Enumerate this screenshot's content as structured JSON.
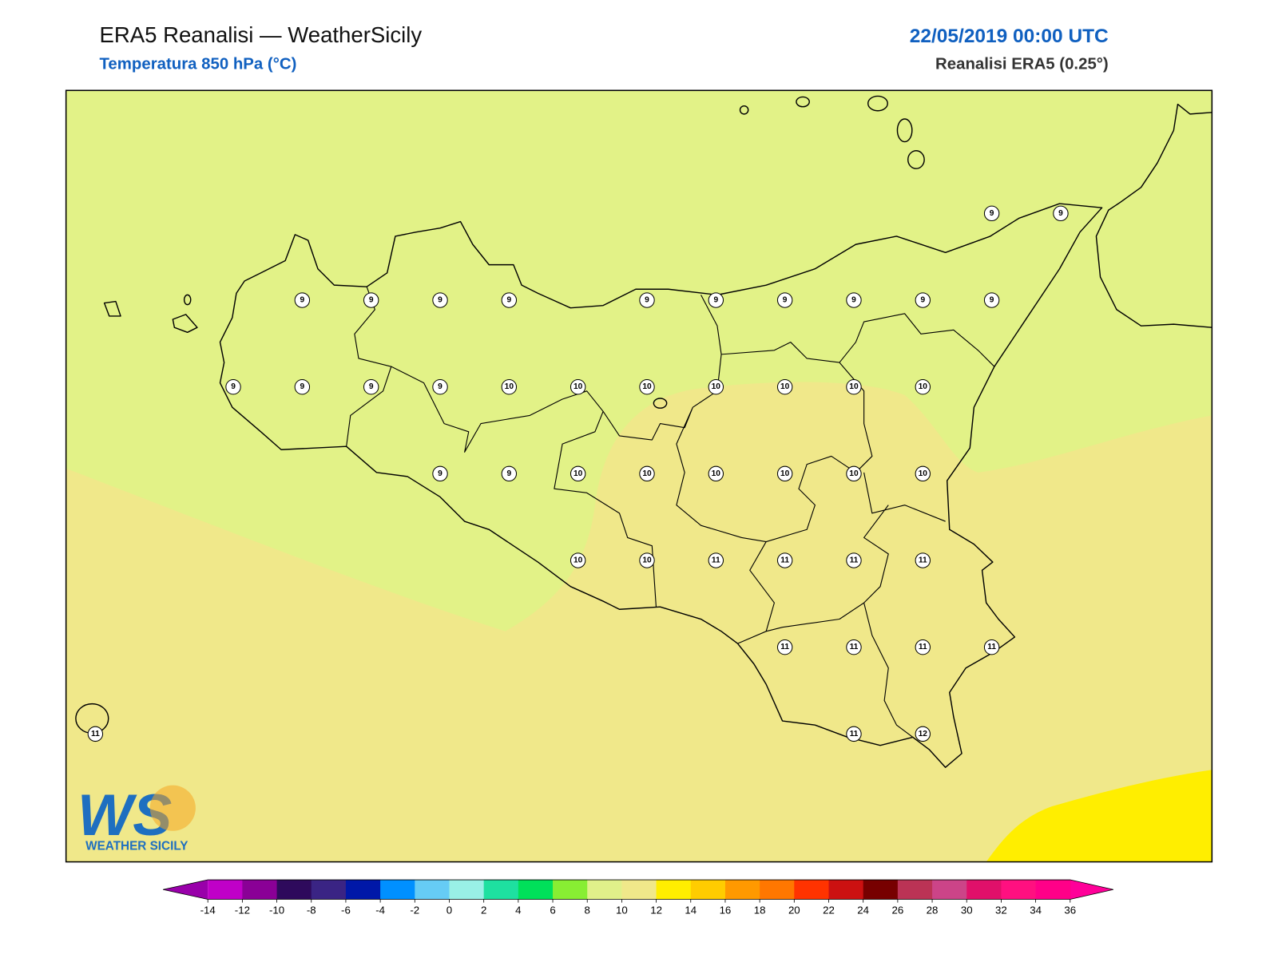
{
  "header": {
    "title": "ERA5 Reanalisi — WeatherSicily",
    "subtitle": "Temperatura 850 hPa (°C)",
    "date": "22/05/2019 00:00 UTC",
    "source": "Reanalisi ERA5 (0.25°)"
  },
  "stations": {
    "rows": [
      [
        null,
        null,
        null,
        null,
        null,
        null,
        null,
        null,
        null,
        null,
        null,
        null,
        null,
        9,
        9
      ],
      [
        null,
        null,
        null,
        9,
        9,
        9,
        9,
        null,
        9,
        9,
        9,
        9,
        9,
        9,
        null
      ],
      [
        null,
        null,
        9,
        9,
        9,
        9,
        10,
        10,
        10,
        10,
        10,
        10,
        10,
        null,
        null
      ],
      [
        null,
        null,
        null,
        null,
        null,
        9,
        9,
        10,
        10,
        10,
        10,
        10,
        10,
        null,
        null
      ],
      [
        null,
        null,
        null,
        null,
        null,
        null,
        null,
        10,
        10,
        11,
        11,
        11,
        11,
        null,
        null
      ],
      [
        null,
        null,
        null,
        null,
        null,
        null,
        null,
        null,
        null,
        null,
        11,
        11,
        11,
        11,
        null
      ],
      [
        11,
        null,
        null,
        null,
        null,
        null,
        null,
        null,
        null,
        null,
        null,
        11,
        12,
        null,
        null
      ]
    ]
  },
  "logo": {
    "mark": "WS",
    "text": "WEATHER SICILY"
  },
  "colorbar": {
    "ticks": [
      -14,
      -12,
      -10,
      -8,
      -6,
      -4,
      -2,
      0,
      2,
      4,
      6,
      8,
      10,
      12,
      14,
      16,
      18,
      20,
      22,
      24,
      26,
      28,
      30,
      32,
      34,
      36
    ],
    "colors": [
      "#c000c8",
      "#8a0096",
      "#2e0a5c",
      "#3a2484",
      "#0018a8",
      "#0090ff",
      "#66ccf5",
      "#99f0e6",
      "#1ee0a0",
      "#00e05a",
      "#88ee33",
      "#e0f08a",
      "#f0e88a",
      "#ffee00",
      "#ffcc00",
      "#ff9900",
      "#ff7700",
      "#ff3300",
      "#cc1111",
      "#770000",
      "#bb3355",
      "#cc4488",
      "#e0106a",
      "#ff1080",
      "#ff0088"
    ],
    "under": "#9900aa",
    "over": "#ff0099"
  }
}
